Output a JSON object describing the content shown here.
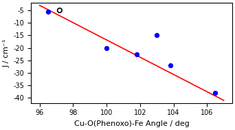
{
  "chart_data": {
    "type": "scatter",
    "xlabel": "Cu-O(Phenoxo)-Fe Angle / deg",
    "ylabel": "J / cm⁻¹",
    "xlim": [
      95.5,
      107.5
    ],
    "ylim": [
      -42,
      -2
    ],
    "xticks": [
      96,
      98,
      100,
      102,
      104,
      106
    ],
    "yticks": [
      -5,
      -10,
      -15,
      -20,
      -25,
      -30,
      -35,
      -40
    ],
    "grid": false,
    "series": [
      {
        "type": "line",
        "color": "#ff0000",
        "line_style": "solid",
        "x": [
          96,
          107
        ],
        "values": [
          -3.0,
          -41.0
        ]
      },
      {
        "type": "scatter",
        "color": "#0000ff",
        "marker": "filled_circle",
        "x": [
          96.5,
          100.0,
          101.8,
          103.0,
          103.8,
          106.5
        ],
        "values": [
          -5.5,
          -20.0,
          -22.5,
          -15.0,
          -27.0,
          -38.0
        ]
      },
      {
        "type": "scatter",
        "color": "#000000",
        "marker": "open_circle",
        "x": [
          97.2
        ],
        "values": [
          -5.0
        ]
      }
    ]
  }
}
